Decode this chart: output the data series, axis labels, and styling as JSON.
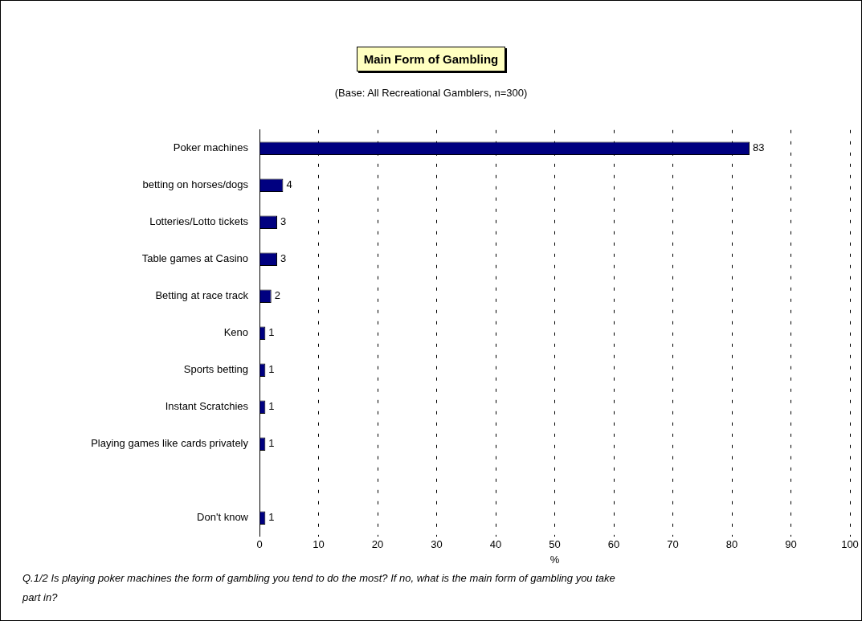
{
  "chart_data": {
    "type": "bar",
    "orientation": "horizontal",
    "title": "Main Form of Gambling",
    "subtitle": "(Base: All Recreational Gamblers, n=300)",
    "categories": [
      "Poker machines",
      "betting on horses/dogs",
      "Lotteries/Lotto tickets",
      "Table games at Casino",
      "Betting at race track",
      "Keno",
      "Sports betting",
      "Instant Scratchies",
      "Playing games like cards privately",
      null,
      "Don't know"
    ],
    "values": [
      83,
      4,
      3,
      3,
      2,
      1,
      1,
      1,
      1,
      null,
      1
    ],
    "color": "#000080",
    "xlim": [
      0,
      100
    ],
    "xticks": [
      0,
      10,
      20,
      30,
      40,
      50,
      60,
      70,
      80,
      90,
      100
    ],
    "xlabel": "%",
    "grid": "x",
    "data_labels": true,
    "legend": false,
    "annotations": [
      "Q.1/2 Is playing poker machines the form of gambling you tend to do the most? If no, what is the main form of gambling you take part in?"
    ]
  }
}
